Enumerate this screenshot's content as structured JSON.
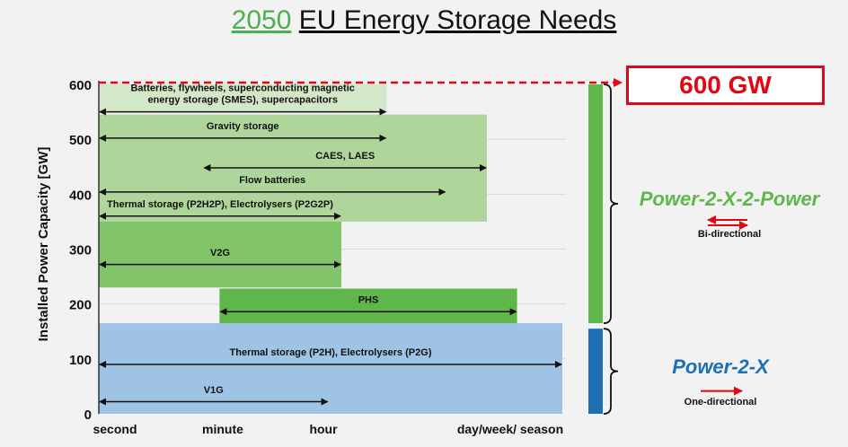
{
  "title": {
    "year": "2050",
    "text": "EU Energy Storage Needs"
  },
  "axes": {
    "ylabel": "Installed Power Capacity [GW]",
    "ylim": [
      0,
      600
    ],
    "y_ticks": [
      "0",
      "100",
      "200",
      "300",
      "400",
      "500",
      "600"
    ],
    "x_ticks": [
      "second",
      "minute",
      "hour",
      "day/week/ season"
    ]
  },
  "total": {
    "label": "600 GW",
    "color": "#e30613"
  },
  "regions": [
    {
      "id": "p2x2p-top",
      "x_start": 0.0,
      "x_end": 2.67,
      "y_low": 550,
      "y_high": 600,
      "color": "#d3e8c8"
    },
    {
      "id": "p2x2p-mid",
      "x_start": 0.0,
      "x_end": 3.6,
      "y_low": 350,
      "y_high": 545,
      "color": "#aed69a"
    },
    {
      "id": "v2g",
      "x_start": 0.0,
      "x_end": 2.25,
      "y_low": 230,
      "y_high": 350,
      "color": "#82c46a"
    },
    {
      "id": "phs",
      "x_start": 1.12,
      "x_end": 3.88,
      "y_low": 165,
      "y_high": 228,
      "color": "#5fb64b"
    },
    {
      "id": "p2x",
      "x_start": 0.0,
      "x_end": 4.3,
      "y_low": 0,
      "y_high": 165,
      "color": "#9fc3e4"
    }
  ],
  "arrows": [
    {
      "label": "Batteries, flywheels, superconducting magnetic energy storage (SMES), supercapacitors",
      "lines": [
        "Batteries, flywheels, superconducting magnetic",
        "energy storage (SMES), supercapacitors"
      ],
      "x_start": 0.0,
      "x_end": 2.67,
      "y": 550,
      "label_y": 588
    },
    {
      "label": "Gravity storage",
      "lines": [
        "Gravity storage"
      ],
      "x_start": 0.0,
      "x_end": 2.67,
      "y": 502,
      "label_y": 518
    },
    {
      "label": "CAES, LAES",
      "lines": [
        "CAES, LAES"
      ],
      "x_start": 0.97,
      "x_end": 3.6,
      "y": 448,
      "label_y": 464
    },
    {
      "label": "Flow batteries",
      "lines": [
        "Flow batteries"
      ],
      "x_start": 0.0,
      "x_end": 3.22,
      "y": 404,
      "label_y": 420
    },
    {
      "label": "Thermal storage (P2H2P), Electrolysers (P2G2P)",
      "lines": [
        "Thermal storage (P2H2P), Electrolysers (P2G2P)"
      ],
      "x_start": 0.0,
      "x_end": 2.25,
      "y": 360,
      "label_y": 376
    },
    {
      "label": "V2G",
      "lines": [
        "V2G"
      ],
      "x_start": 0.0,
      "x_end": 2.25,
      "y": 272,
      "label_y": 288
    },
    {
      "label": "PHS",
      "lines": [
        "PHS"
      ],
      "x_start": 1.12,
      "x_end": 3.88,
      "y": 186,
      "label_y": 202
    },
    {
      "label": "Thermal storage (P2H), Electrolysers (P2G)",
      "lines": [
        "Thermal storage (P2H), Electrolysers (P2G)"
      ],
      "x_start": 0.0,
      "x_end": 4.3,
      "y": 90,
      "label_y": 106
    },
    {
      "label": "V1G",
      "lines": [
        "V1G"
      ],
      "x_start": 0.0,
      "x_end": 2.13,
      "y": 22,
      "label_y": 38
    }
  ],
  "groups": [
    {
      "label": "Power-2-X-2-Power",
      "sublabel": "Bi-directional",
      "color": "#5fb64b",
      "y_low": 165,
      "y_high": 600
    },
    {
      "label": "Power-2-X",
      "sublabel": "One-directional",
      "color": "#1f6fb2",
      "y_low": 0,
      "y_high": 155
    }
  ]
}
